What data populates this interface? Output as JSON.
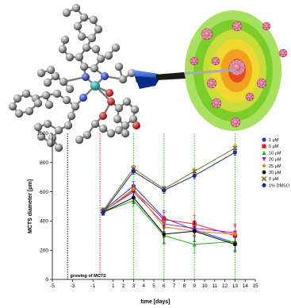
{
  "chart_data": {
    "type": "line",
    "xlabel": "time [days]",
    "ylabel": "MCTS diameter [μm]",
    "xlim": [
      -5,
      15
    ],
    "ylim": [
      0,
      1000
    ],
    "x_ticks": [
      "-5",
      "-3",
      "-1",
      "1",
      "2",
      "3",
      "4",
      "5",
      "6",
      "7",
      "8",
      "9",
      "10",
      "11",
      "12",
      "13",
      "14",
      "15"
    ],
    "y_ticks": [
      "0",
      "200",
      "400",
      "600",
      "800",
      "1000"
    ],
    "x_tick_values": [
      -5,
      -3,
      -1,
      1,
      2,
      3,
      4,
      5,
      6,
      7,
      8,
      9,
      10,
      11,
      12,
      13,
      14,
      15
    ],
    "y_tick_values": [
      0,
      200,
      400,
      600,
      800,
      1000
    ],
    "annotation": "growing of MCTS",
    "grid": false,
    "legend_position": "right",
    "vlines": [
      {
        "x": -3.5,
        "color": "#000000"
      },
      {
        "x": -0.3,
        "color": "#e02020"
      },
      {
        "x": 3,
        "color": "#22c022"
      },
      {
        "x": 6,
        "color": "#22c022"
      },
      {
        "x": 9,
        "color": "#22c022"
      },
      {
        "x": 13,
        "color": "#22c022"
      }
    ],
    "x": [
      0,
      3,
      6,
      9,
      13
    ],
    "series": [
      {
        "name": "1 μM",
        "color": "#1f3fd0",
        "marker": "circle",
        "values": [
          470,
          640,
          420,
          340,
          250
        ],
        "err": [
          20,
          30,
          40,
          40,
          50
        ]
      },
      {
        "name": "5 μM",
        "color": "#e02020",
        "marker": "square",
        "values": [
          465,
          610,
          410,
          380,
          300
        ],
        "err": [
          20,
          40,
          60,
          60,
          70
        ]
      },
      {
        "name": "10 μM",
        "color": "#22b022",
        "marker": "triangle-up",
        "values": [
          460,
          540,
          300,
          240,
          260
        ],
        "err": [
          20,
          40,
          60,
          60,
          60
        ]
      },
      {
        "name": "20 μM",
        "color": "#a020c0",
        "marker": "triangle-down",
        "values": [
          465,
          600,
          380,
          350,
          320
        ],
        "err": [
          20,
          30,
          50,
          50,
          60
        ]
      },
      {
        "name": "25 μM",
        "color": "#e08020",
        "marker": "diamond",
        "values": [
          460,
          620,
          360,
          330,
          310
        ],
        "err": [
          20,
          30,
          40,
          40,
          50
        ]
      },
      {
        "name": "30 μM",
        "color": "#000000",
        "marker": "hexagon",
        "values": [
          460,
          560,
          310,
          330,
          240
        ],
        "err": [
          20,
          40,
          60,
          70,
          50
        ]
      },
      {
        "name": "0 μM",
        "color": "#8a6a20",
        "marker": "x",
        "values": [
          470,
          760,
          620,
          740,
          900
        ],
        "err": [
          15,
          20,
          20,
          20,
          20
        ]
      },
      {
        "name": "1% DMSO",
        "color": "#1f2f80",
        "marker": "circle",
        "values": [
          460,
          740,
          610,
          710,
          870
        ],
        "err": [
          15,
          20,
          20,
          20,
          20
        ]
      }
    ]
  }
}
